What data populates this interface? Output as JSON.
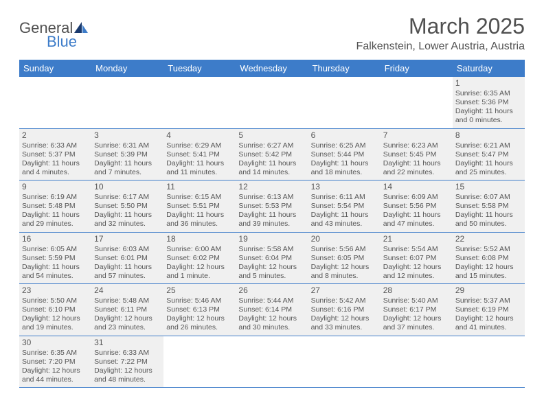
{
  "logo": {
    "part1": "General",
    "part2": "Blue"
  },
  "title": "March 2025",
  "subtitle": "Falkenstein, Lower Austria, Austria",
  "day_headers": [
    "Sunday",
    "Monday",
    "Tuesday",
    "Wednesday",
    "Thursday",
    "Friday",
    "Saturday"
  ],
  "colors": {
    "header_bg": "#3d7cc9",
    "header_text": "#ffffff",
    "cell_bg": "#f0f0f0",
    "text": "#555555",
    "page_bg": "#ffffff"
  },
  "typography": {
    "title_fontsize": 32,
    "subtitle_fontsize": 16,
    "dayhead_fontsize": 13,
    "daynum_fontsize": 12,
    "info_fontsize": 10.5
  },
  "layout": {
    "columns": 7,
    "rows": 6,
    "leading_blanks": 6,
    "trailing_blanks": 5
  },
  "days": [
    {
      "n": "1",
      "sunrise": "Sunrise: 6:35 AM",
      "sunset": "Sunset: 5:36 PM",
      "daylight": "Daylight: 11 hours and 0 minutes."
    },
    {
      "n": "2",
      "sunrise": "Sunrise: 6:33 AM",
      "sunset": "Sunset: 5:37 PM",
      "daylight": "Daylight: 11 hours and 4 minutes."
    },
    {
      "n": "3",
      "sunrise": "Sunrise: 6:31 AM",
      "sunset": "Sunset: 5:39 PM",
      "daylight": "Daylight: 11 hours and 7 minutes."
    },
    {
      "n": "4",
      "sunrise": "Sunrise: 6:29 AM",
      "sunset": "Sunset: 5:41 PM",
      "daylight": "Daylight: 11 hours and 11 minutes."
    },
    {
      "n": "5",
      "sunrise": "Sunrise: 6:27 AM",
      "sunset": "Sunset: 5:42 PM",
      "daylight": "Daylight: 11 hours and 14 minutes."
    },
    {
      "n": "6",
      "sunrise": "Sunrise: 6:25 AM",
      "sunset": "Sunset: 5:44 PM",
      "daylight": "Daylight: 11 hours and 18 minutes."
    },
    {
      "n": "7",
      "sunrise": "Sunrise: 6:23 AM",
      "sunset": "Sunset: 5:45 PM",
      "daylight": "Daylight: 11 hours and 22 minutes."
    },
    {
      "n": "8",
      "sunrise": "Sunrise: 6:21 AM",
      "sunset": "Sunset: 5:47 PM",
      "daylight": "Daylight: 11 hours and 25 minutes."
    },
    {
      "n": "9",
      "sunrise": "Sunrise: 6:19 AM",
      "sunset": "Sunset: 5:48 PM",
      "daylight": "Daylight: 11 hours and 29 minutes."
    },
    {
      "n": "10",
      "sunrise": "Sunrise: 6:17 AM",
      "sunset": "Sunset: 5:50 PM",
      "daylight": "Daylight: 11 hours and 32 minutes."
    },
    {
      "n": "11",
      "sunrise": "Sunrise: 6:15 AM",
      "sunset": "Sunset: 5:51 PM",
      "daylight": "Daylight: 11 hours and 36 minutes."
    },
    {
      "n": "12",
      "sunrise": "Sunrise: 6:13 AM",
      "sunset": "Sunset: 5:53 PM",
      "daylight": "Daylight: 11 hours and 39 minutes."
    },
    {
      "n": "13",
      "sunrise": "Sunrise: 6:11 AM",
      "sunset": "Sunset: 5:54 PM",
      "daylight": "Daylight: 11 hours and 43 minutes."
    },
    {
      "n": "14",
      "sunrise": "Sunrise: 6:09 AM",
      "sunset": "Sunset: 5:56 PM",
      "daylight": "Daylight: 11 hours and 47 minutes."
    },
    {
      "n": "15",
      "sunrise": "Sunrise: 6:07 AM",
      "sunset": "Sunset: 5:58 PM",
      "daylight": "Daylight: 11 hours and 50 minutes."
    },
    {
      "n": "16",
      "sunrise": "Sunrise: 6:05 AM",
      "sunset": "Sunset: 5:59 PM",
      "daylight": "Daylight: 11 hours and 54 minutes."
    },
    {
      "n": "17",
      "sunrise": "Sunrise: 6:03 AM",
      "sunset": "Sunset: 6:01 PM",
      "daylight": "Daylight: 11 hours and 57 minutes."
    },
    {
      "n": "18",
      "sunrise": "Sunrise: 6:00 AM",
      "sunset": "Sunset: 6:02 PM",
      "daylight": "Daylight: 12 hours and 1 minute."
    },
    {
      "n": "19",
      "sunrise": "Sunrise: 5:58 AM",
      "sunset": "Sunset: 6:04 PM",
      "daylight": "Daylight: 12 hours and 5 minutes."
    },
    {
      "n": "20",
      "sunrise": "Sunrise: 5:56 AM",
      "sunset": "Sunset: 6:05 PM",
      "daylight": "Daylight: 12 hours and 8 minutes."
    },
    {
      "n": "21",
      "sunrise": "Sunrise: 5:54 AM",
      "sunset": "Sunset: 6:07 PM",
      "daylight": "Daylight: 12 hours and 12 minutes."
    },
    {
      "n": "22",
      "sunrise": "Sunrise: 5:52 AM",
      "sunset": "Sunset: 6:08 PM",
      "daylight": "Daylight: 12 hours and 15 minutes."
    },
    {
      "n": "23",
      "sunrise": "Sunrise: 5:50 AM",
      "sunset": "Sunset: 6:10 PM",
      "daylight": "Daylight: 12 hours and 19 minutes."
    },
    {
      "n": "24",
      "sunrise": "Sunrise: 5:48 AM",
      "sunset": "Sunset: 6:11 PM",
      "daylight": "Daylight: 12 hours and 23 minutes."
    },
    {
      "n": "25",
      "sunrise": "Sunrise: 5:46 AM",
      "sunset": "Sunset: 6:13 PM",
      "daylight": "Daylight: 12 hours and 26 minutes."
    },
    {
      "n": "26",
      "sunrise": "Sunrise: 5:44 AM",
      "sunset": "Sunset: 6:14 PM",
      "daylight": "Daylight: 12 hours and 30 minutes."
    },
    {
      "n": "27",
      "sunrise": "Sunrise: 5:42 AM",
      "sunset": "Sunset: 6:16 PM",
      "daylight": "Daylight: 12 hours and 33 minutes."
    },
    {
      "n": "28",
      "sunrise": "Sunrise: 5:40 AM",
      "sunset": "Sunset: 6:17 PM",
      "daylight": "Daylight: 12 hours and 37 minutes."
    },
    {
      "n": "29",
      "sunrise": "Sunrise: 5:37 AM",
      "sunset": "Sunset: 6:19 PM",
      "daylight": "Daylight: 12 hours and 41 minutes."
    },
    {
      "n": "30",
      "sunrise": "Sunrise: 6:35 AM",
      "sunset": "Sunset: 7:20 PM",
      "daylight": "Daylight: 12 hours and 44 minutes."
    },
    {
      "n": "31",
      "sunrise": "Sunrise: 6:33 AM",
      "sunset": "Sunset: 7:22 PM",
      "daylight": "Daylight: 12 hours and 48 minutes."
    }
  ]
}
